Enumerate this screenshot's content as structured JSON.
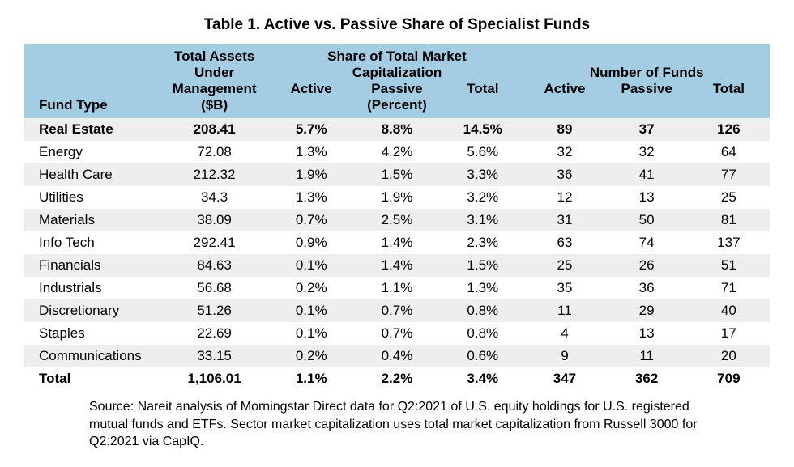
{
  "title": "Table 1. Active vs. Passive Share of Specialist Funds",
  "headers": {
    "fund_type": "Fund Type",
    "aum_line1": "Total Assets",
    "aum_line2": "Under",
    "aum_line3": "Management",
    "aum_line4": "($B)",
    "share_line1": "Share of Total Market",
    "share_line2": "Capitalization",
    "share_active": "Active",
    "share_passive": "Passive",
    "share_total": "Total",
    "share_unit": "(Percent)",
    "num_line1": "Number of Funds",
    "num_active": "Active",
    "num_passive": "Passive",
    "num_total": "Total"
  },
  "rows": [
    {
      "label": "Real Estate",
      "aum": "208.41",
      "sa": "5.7%",
      "sp": "8.8%",
      "st": "14.5%",
      "na": "89",
      "np": "37",
      "nt": "126",
      "bold": true,
      "stripe": true
    },
    {
      "label": "Energy",
      "aum": "72.08",
      "sa": "1.3%",
      "sp": "4.2%",
      "st": "5.6%",
      "na": "32",
      "np": "32",
      "nt": "64",
      "bold": false,
      "stripe": false
    },
    {
      "label": "Health Care",
      "aum": "212.32",
      "sa": "1.9%",
      "sp": "1.5%",
      "st": "3.3%",
      "na": "36",
      "np": "41",
      "nt": "77",
      "bold": false,
      "stripe": true
    },
    {
      "label": "Utilities",
      "aum": "34.3",
      "sa": "1.3%",
      "sp": "1.9%",
      "st": "3.2%",
      "na": "12",
      "np": "13",
      "nt": "25",
      "bold": false,
      "stripe": false
    },
    {
      "label": "Materials",
      "aum": "38.09",
      "sa": "0.7%",
      "sp": "2.5%",
      "st": "3.1%",
      "na": "31",
      "np": "50",
      "nt": "81",
      "bold": false,
      "stripe": true
    },
    {
      "label": "Info Tech",
      "aum": "292.41",
      "sa": "0.9%",
      "sp": "1.4%",
      "st": "2.3%",
      "na": "63",
      "np": "74",
      "nt": "137",
      "bold": false,
      "stripe": false
    },
    {
      "label": "Financials",
      "aum": "84.63",
      "sa": "0.1%",
      "sp": "1.4%",
      "st": "1.5%",
      "na": "25",
      "np": "26",
      "nt": "51",
      "bold": false,
      "stripe": true
    },
    {
      "label": "Industrials",
      "aum": "56.68",
      "sa": "0.2%",
      "sp": "1.1%",
      "st": "1.3%",
      "na": "35",
      "np": "36",
      "nt": "71",
      "bold": false,
      "stripe": false
    },
    {
      "label": "Discretionary",
      "aum": "51.26",
      "sa": "0.1%",
      "sp": "0.7%",
      "st": "0.8%",
      "na": "11",
      "np": "29",
      "nt": "40",
      "bold": false,
      "stripe": true
    },
    {
      "label": "Staples",
      "aum": "22.69",
      "sa": "0.1%",
      "sp": "0.7%",
      "st": "0.8%",
      "na": "4",
      "np": "13",
      "nt": "17",
      "bold": false,
      "stripe": false
    },
    {
      "label": "Communications",
      "aum": "33.15",
      "sa": "0.2%",
      "sp": "0.4%",
      "st": "0.6%",
      "na": "9",
      "np": "11",
      "nt": "20",
      "bold": false,
      "stripe": true
    },
    {
      "label": "Total",
      "aum": "1,106.01",
      "sa": "1.1%",
      "sp": "2.2%",
      "st": "3.4%",
      "na": "347",
      "np": "362",
      "nt": "709",
      "bold": true,
      "stripe": false
    }
  ],
  "source": "Source: Nareit analysis of Morningstar Direct data for Q2:2021 of U.S. equity holdings for U.S. registered mutual funds and ETFs. Sector market capitalization uses total market capitalization from Russell 3000 for Q2:2021 via CapIQ.",
  "colors": {
    "header_bg": "#a4cde4",
    "stripe_bg": "#eeeeee",
    "text": "#000000",
    "background": "#ffffff"
  }
}
